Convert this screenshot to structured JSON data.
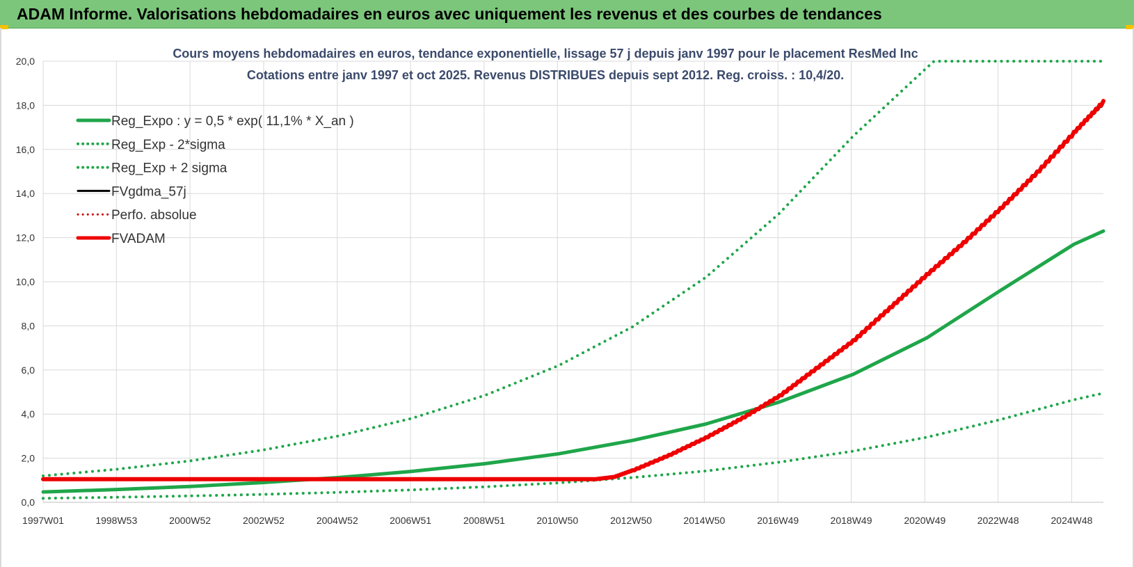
{
  "header": {
    "title": "ADAM Informe. Valorisations hebdomadaires en euros avec uniquement les revenus et des courbes de tendances",
    "background": "#7bc67b"
  },
  "chart_data": {
    "type": "line",
    "title_lines": [
      "Cours moyens hebdomadaires en euros, tendance exponentielle, lissage 57 j depuis janv 1997 pour le placement ResMed Inc",
      "Cotations entre janv 1997 et oct 2025. Revenus DISTRIBUES depuis sept 2012. Reg. croiss. : 10,4/20."
    ],
    "x_tick_labels": [
      "1997W01",
      "1998W53",
      "2000W52",
      "2002W52",
      "2004W52",
      "2006W51",
      "2008W51",
      "2010W50",
      "2012W50",
      "2014W50",
      "2016W49",
      "2018W49",
      "2020W49",
      "2022W48",
      "2024W48"
    ],
    "x_tick_years": [
      1997.0,
      1998.99,
      2000.99,
      2002.99,
      2004.99,
      2006.98,
      2008.98,
      2010.97,
      2012.97,
      2014.96,
      2016.96,
      2018.95,
      2020.95,
      2022.94,
      2024.94
    ],
    "xlim": [
      1997.0,
      2025.8
    ],
    "ylim": [
      0,
      20
    ],
    "y_ticks": [
      0,
      2,
      4,
      6,
      8,
      10,
      12,
      14,
      16,
      18,
      20
    ],
    "y_tick_labels": [
      "0,0",
      "2,0",
      "4,0",
      "6,0",
      "8,0",
      "10,0",
      "12,0",
      "14,0",
      "16,0",
      "18,0",
      "20,0"
    ],
    "grid": true,
    "legend_position": "top-left",
    "series": [
      {
        "name": "Reg_Expo : y = 0,5 * exp( 11,1% *  X_an )",
        "color": "#1fa64a",
        "style": "solid",
        "width": 5,
        "x": [
          1997,
          1999,
          2001,
          2003,
          2005,
          2007,
          2009,
          2011,
          2013,
          2015,
          2017,
          2019,
          2021,
          2023,
          2025,
          2025.8
        ],
        "y": [
          0.47,
          0.58,
          0.72,
          0.9,
          1.12,
          1.4,
          1.75,
          2.2,
          2.8,
          3.55,
          4.55,
          5.8,
          7.45,
          9.6,
          11.7,
          12.3
        ]
      },
      {
        "name": "Reg_Exp - 2*sigma",
        "color": "#1fa64a",
        "style": "dotted",
        "width": 4,
        "x": [
          1997,
          1999,
          2001,
          2003,
          2005,
          2007,
          2009,
          2011,
          2013,
          2015,
          2017,
          2019,
          2021,
          2023,
          2025,
          2025.8
        ],
        "y": [
          0.18,
          0.23,
          0.29,
          0.36,
          0.45,
          0.56,
          0.7,
          0.88,
          1.12,
          1.42,
          1.82,
          2.32,
          2.95,
          3.75,
          4.65,
          4.95
        ]
      },
      {
        "name": "Reg_Exp + 2 sigma",
        "color": "#1fa64a",
        "style": "dotted",
        "width": 4,
        "x": [
          1997,
          1999,
          2001,
          2003,
          2005,
          2007,
          2009,
          2011,
          2013,
          2015,
          2017,
          2019,
          2021,
          2021.2,
          2025.8
        ],
        "y": [
          1.2,
          1.5,
          1.88,
          2.38,
          3.0,
          3.8,
          4.85,
          6.2,
          7.95,
          10.2,
          13.1,
          16.6,
          19.7,
          20.0,
          20.0
        ]
      },
      {
        "name": "FVgdma_57j",
        "color": "#000000",
        "style": "solid",
        "width": 3,
        "x": [
          1997,
          2012.0,
          2012.5,
          2013,
          2014,
          2015,
          2016,
          2017,
          2018,
          2019,
          2020,
          2021,
          2022,
          2023,
          2024,
          2025,
          2025.8
        ],
        "y": [
          1.05,
          1.05,
          1.15,
          1.45,
          2.15,
          2.95,
          3.85,
          4.85,
          6.1,
          7.35,
          8.85,
          10.35,
          11.8,
          13.35,
          15.0,
          16.8,
          18.1
        ]
      },
      {
        "name": "Perfo. absolue",
        "color": "#cc0000",
        "style": "dotted",
        "width": 3,
        "x": [
          1997,
          2012.0,
          2012.5,
          2013,
          2014,
          2015,
          2016,
          2017,
          2018,
          2019,
          2020,
          2021,
          2022,
          2023,
          2024,
          2025,
          2025.8
        ],
        "y": [
          1.05,
          1.05,
          1.15,
          1.45,
          2.15,
          2.95,
          3.85,
          4.85,
          6.1,
          7.35,
          8.85,
          10.35,
          11.8,
          13.35,
          15.0,
          16.8,
          18.1
        ]
      },
      {
        "name": "FVADAM",
        "color": "#ee0000",
        "style": "solid",
        "width": 6,
        "x": [
          1997,
          2012.0,
          2012.5,
          2013,
          2014,
          2015,
          2016,
          2017,
          2018,
          2019,
          2020,
          2021,
          2022,
          2023,
          2024,
          2025,
          2025.8
        ],
        "y": [
          1.05,
          1.05,
          1.15,
          1.45,
          2.15,
          2.95,
          3.85,
          4.85,
          6.1,
          7.35,
          8.85,
          10.35,
          11.8,
          13.35,
          15.0,
          16.8,
          18.2
        ]
      }
    ]
  }
}
